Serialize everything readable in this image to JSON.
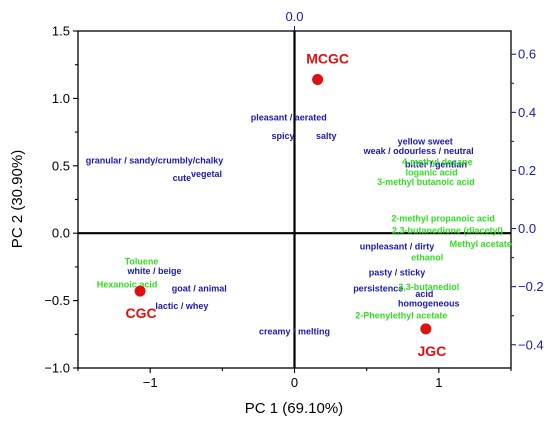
{
  "chart_data": {
    "type": "scatter",
    "xlabel": "PC 1 (69.10%)",
    "ylabel": "PC 2 (30.90%)",
    "xlim": [
      -1.5,
      1.5
    ],
    "ylim": [
      -1.0,
      1.5
    ],
    "x_ticks": [
      -1,
      0,
      1
    ],
    "x_tick_labels": [
      "−1",
      "0",
      "1"
    ],
    "y_ticks": [
      -1.0,
      -0.5,
      0.0,
      0.5,
      1.0,
      1.5
    ],
    "y_tick_labels": [
      "−1.0",
      "−0.5",
      "0.0",
      "0.5",
      "1.0",
      "1.5"
    ],
    "top_axis": {
      "ticks": [
        0.0
      ],
      "tick_labels": [
        "0.0"
      ],
      "color": "#1a1ab0"
    },
    "right_axis": {
      "ylim": [
        -0.48,
        0.68
      ],
      "ticks": [
        -0.4,
        -0.2,
        0.0,
        0.2,
        0.4,
        0.6
      ],
      "tick_labels": [
        "−0.4",
        "−0.2",
        "0.0",
        "0.2",
        "0.4",
        "0.6"
      ],
      "color": "#1a1ab0"
    },
    "grid": false,
    "samples": [
      {
        "label": "MCGC",
        "x": 0.16,
        "y": 1.14,
        "color": "#e01010"
      },
      {
        "label": "CGC",
        "x": -1.07,
        "y": -0.43,
        "color": "#e01010"
      },
      {
        "label": "JGC",
        "x": 0.91,
        "y": -0.71,
        "color": "#e01010"
      }
    ],
    "sensory_attributes": [
      {
        "text": "pleasant / aerated",
        "x": -0.04,
        "y": 0.86
      },
      {
        "text": "spicy",
        "x": -0.08,
        "y": 0.72
      },
      {
        "text": "salty",
        "x": 0.22,
        "y": 0.72
      },
      {
        "text": "granular / sandy/crumbly/chalky",
        "x": -0.97,
        "y": 0.54
      },
      {
        "text": "cute",
        "x": -0.78,
        "y": 0.41
      },
      {
        "text": "vegetal",
        "x": -0.61,
        "y": 0.44
      },
      {
        "text": "yellow",
        "x": 0.81,
        "y": 0.68
      },
      {
        "text": "sweet",
        "x": 1.01,
        "y": 0.68
      },
      {
        "text": "weak / odourless / neutral",
        "x": 0.86,
        "y": 0.61
      },
      {
        "text": "bitter / gentian",
        "x": 0.98,
        "y": 0.51
      },
      {
        "text": "unpleasant / dirty",
        "x": 0.71,
        "y": -0.1
      },
      {
        "text": "pasty / sticky",
        "x": 0.71,
        "y": -0.29
      },
      {
        "text": "persistence",
        "x": 0.58,
        "y": -0.41
      },
      {
        "text": "acid",
        "x": 0.9,
        "y": -0.45
      },
      {
        "text": "homogeneous",
        "x": 0.93,
        "y": -0.52
      },
      {
        "text": "creamy / melting",
        "x": 0.0,
        "y": -0.73
      },
      {
        "text": "white / beige",
        "x": -0.97,
        "y": -0.28
      },
      {
        "text": "goat / animal",
        "x": -0.66,
        "y": -0.41
      },
      {
        "text": "lactic / whey",
        "x": -0.78,
        "y": -0.54
      }
    ],
    "volatile_compounds": [
      {
        "text": "4-methyl decane",
        "x": 0.99,
        "y": 0.53
      },
      {
        "text": "loganic acid",
        "x": 0.95,
        "y": 0.45
      },
      {
        "text": "3-methyl butanoic acid",
        "x": 0.91,
        "y": 0.38
      },
      {
        "text": "2-methyl propanoic acid",
        "x": 1.03,
        "y": 0.11
      },
      {
        "text": "2,3-butanedione (diacetyl)",
        "x": 1.06,
        "y": 0.02
      },
      {
        "text": "Methyl acetate",
        "x": 1.29,
        "y": -0.08
      },
      {
        "text": "ethanol",
        "x": 0.92,
        "y": -0.18
      },
      {
        "text": "2,3-butanediol",
        "x": 0.93,
        "y": -0.4
      },
      {
        "text": "2-Phenylethyl acetate",
        "x": 0.74,
        "y": -0.61
      },
      {
        "text": "Toluene",
        "x": -1.06,
        "y": -0.21
      },
      {
        "text": "Hexanoic acid",
        "x": -1.16,
        "y": -0.38
      }
    ]
  }
}
